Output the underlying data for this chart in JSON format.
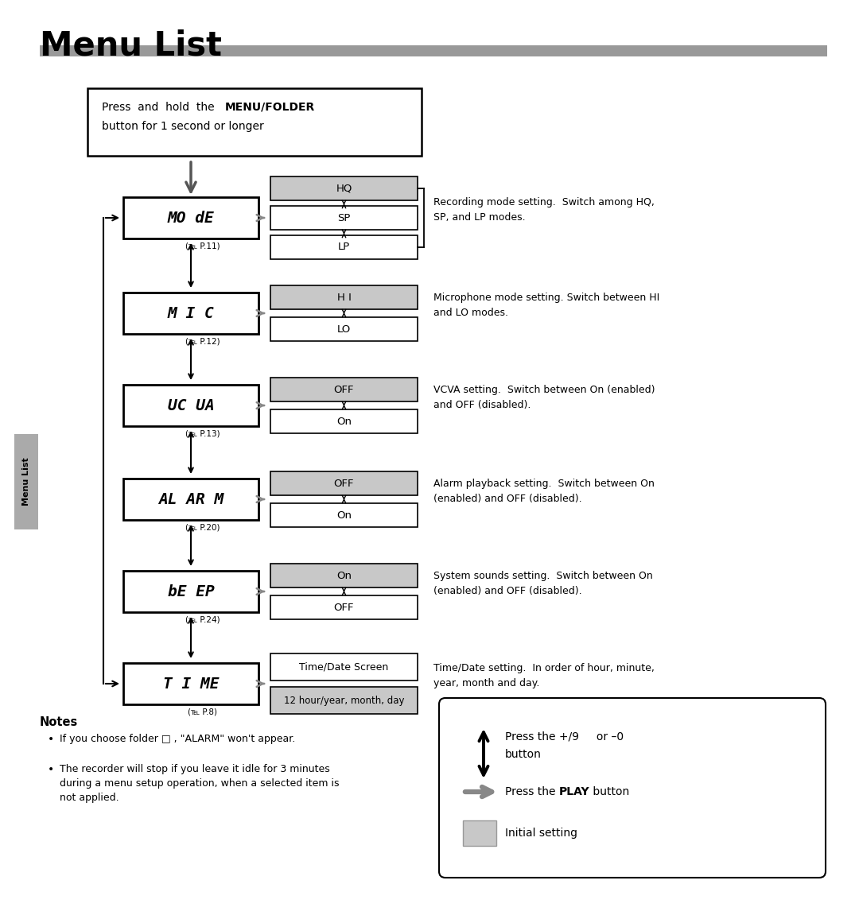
{
  "title": "Menu List",
  "bg_color": "#ffffff",
  "header_bar_color": "#999999",
  "gray_color": "#c8c8c8",
  "side_label": "Menu List",
  "top_box_line1_normal": "Press  and  hold  the  ",
  "top_box_line1_bold": "MENU/FOLDER",
  "top_box_line2": "button for 1 second or longer",
  "menu_labels": [
    "MO dE",
    "M I C",
    "UC UA",
    "AL AR M",
    "bE EP",
    "T I ME"
  ],
  "menu_refs": [
    "(℡ P.11)",
    "(℡ P.12)",
    "(℡ P.13)",
    "(℡ P.20)",
    "(℡ P.24)",
    "(℡ P.8)"
  ],
  "option_labels": [
    [
      "HQ",
      "SP",
      "LP"
    ],
    [
      "H I",
      "LO"
    ],
    [
      "OFF",
      "On"
    ],
    [
      "OFF",
      "On"
    ],
    [
      "On",
      "OFF"
    ],
    [
      "Time/Date Screen",
      "12 hour/year, month, day"
    ]
  ],
  "option_initial": [
    [
      0
    ],
    [
      0
    ],
    [
      0
    ],
    [
      0
    ],
    [
      0
    ],
    [
      1
    ]
  ],
  "descriptions": [
    "Recording mode setting.  Switch among HQ,\nSP, and LP modes.",
    "Microphone mode setting. Switch between HI\nand LO modes.",
    "VCVA setting.  Switch between On (enabled)\nand OFF (disabled).",
    "Alarm playback setting.  Switch between On\n(enabled) and OFF (disabled).",
    "System sounds setting.  Switch between On\n(enabled) and OFF (disabled).",
    "Time/Date setting.  In order of hour, minute,\nyear, month and day."
  ],
  "notes_title": "Notes",
  "note1": "If you choose folder □ , \"ALARM\" won't appear.",
  "note2_line1": "The recorder will stop if you leave it idle for 3 minutes",
  "note2_line2": "during a menu setup operation, when a selected item is",
  "note2_line3": "not applied.",
  "legend_updown": "Press the +/9     or –0\nbutton",
  "legend_play_pre": "Press the ",
  "legend_play_bold": "PLAY",
  "legend_play_post": " button",
  "legend_initial": "Initial setting"
}
